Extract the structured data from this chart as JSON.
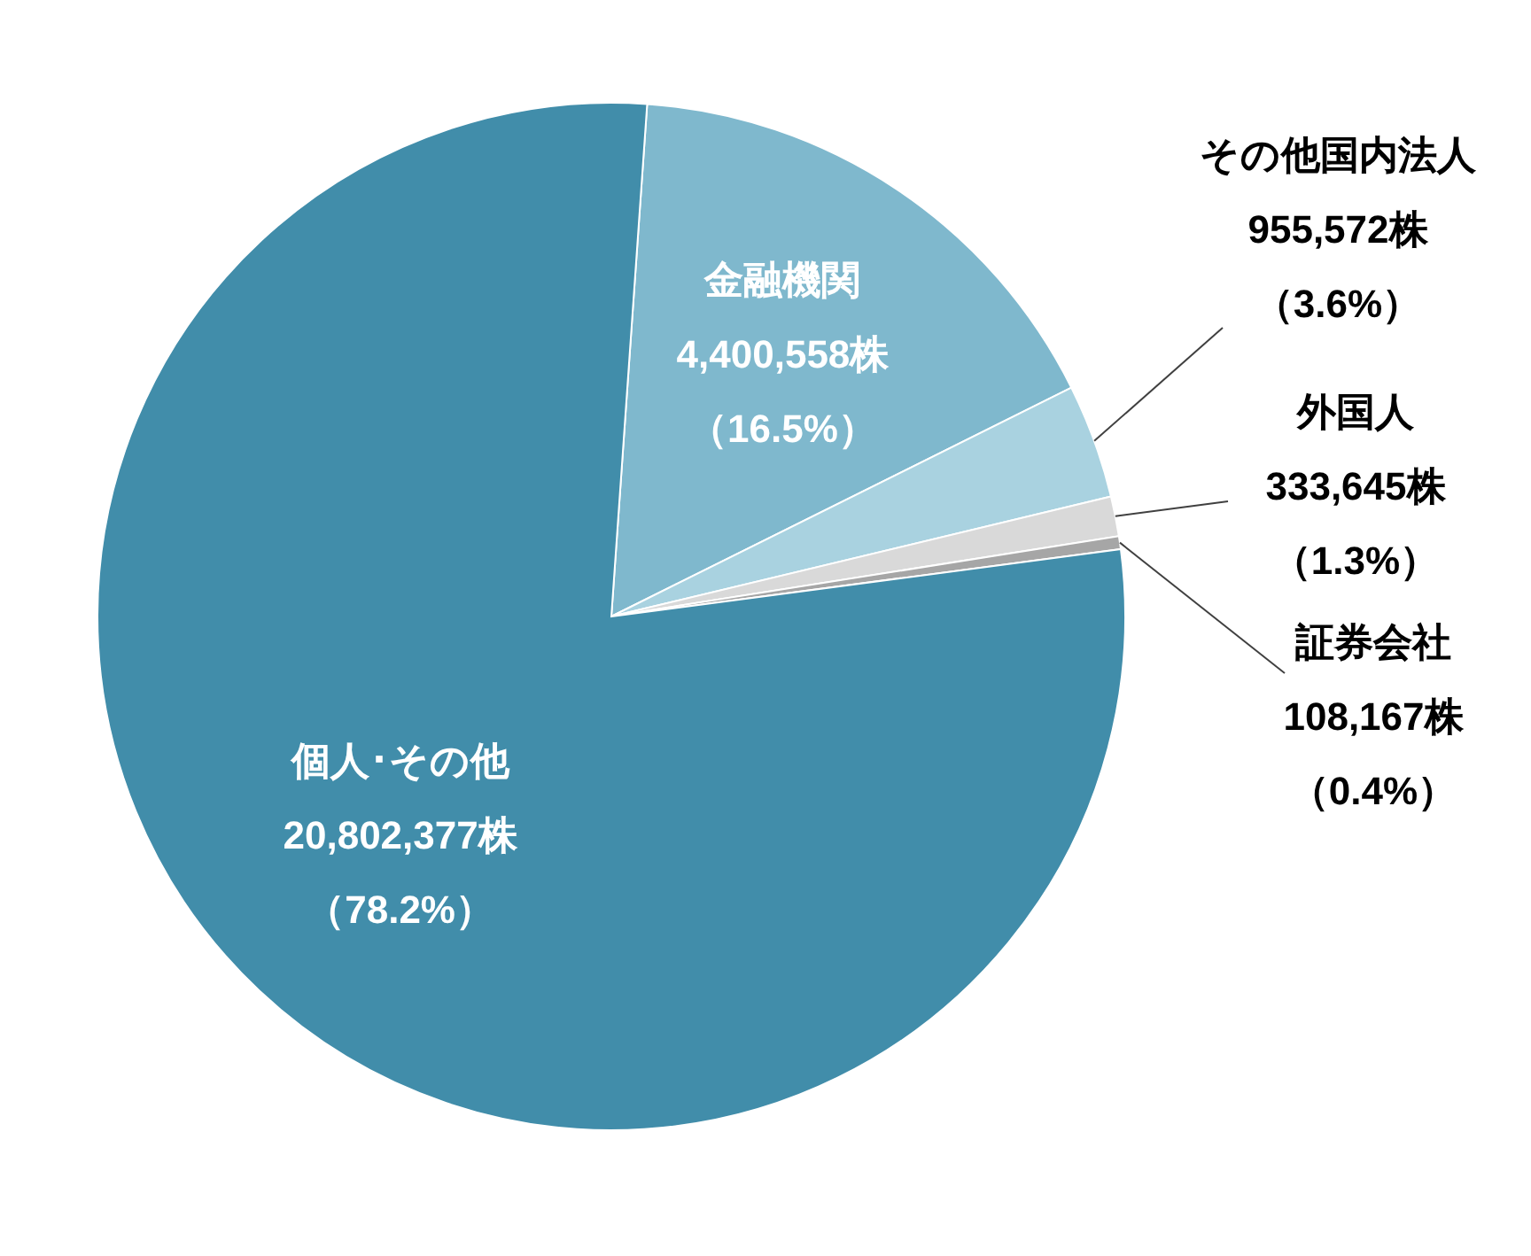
{
  "chart_data": {
    "type": "pie",
    "categories": [
      "金融機関",
      "その他国内法人",
      "外国人",
      "証券会社",
      "個人･その他"
    ],
    "values": [
      4400558,
      955572,
      333645,
      108167,
      20802377
    ],
    "value_labels": [
      "4,400,558株（16.5%）",
      "955,572株（3.6%）",
      "333,645株（1.3%）",
      "108,167株（0.4%）",
      "20,802,377株（78.2%）"
    ],
    "colors": [
      "#7fb8cd",
      "#a9d2e0",
      "#d9d9d9",
      "#a6a6a6",
      "#418daa"
    ]
  }
}
